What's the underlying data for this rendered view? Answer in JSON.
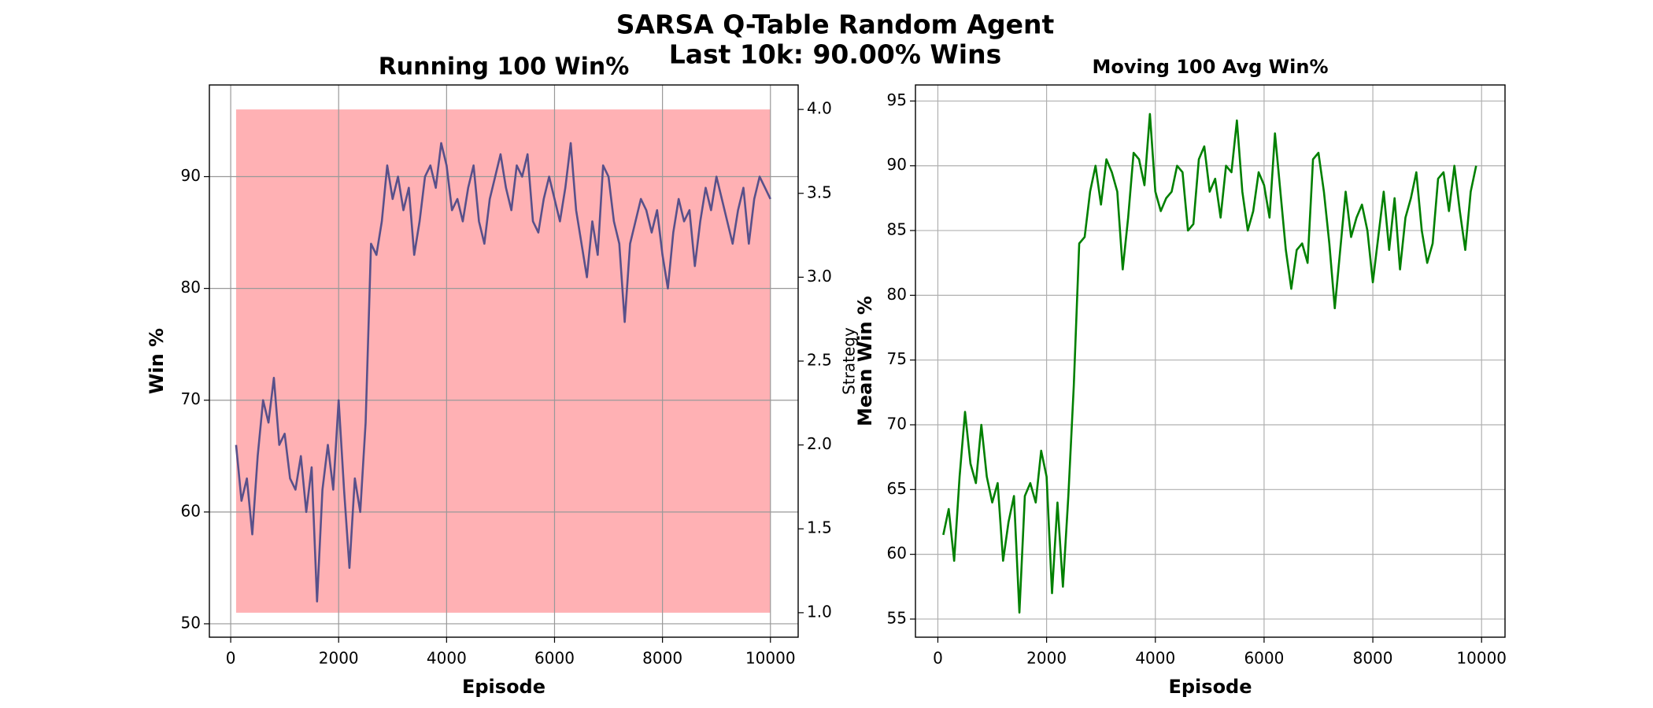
{
  "title": [
    "SARSA Q-Table Random Agent",
    "Last 10k: 90.00% Wins"
  ],
  "chart_data": [
    {
      "type": "line",
      "title": "Running 100 Win%",
      "x_label": "Episode",
      "y_label": "Win %",
      "y2_label": "Strategy",
      "x": [
        100,
        200,
        300,
        400,
        500,
        600,
        700,
        800,
        900,
        1000,
        1100,
        1200,
        1300,
        1400,
        1500,
        1600,
        1700,
        1800,
        1900,
        2000,
        2100,
        2200,
        2300,
        2400,
        2500,
        2600,
        2700,
        2800,
        2900,
        3000,
        3100,
        3200,
        3300,
        3400,
        3500,
        3600,
        3700,
        3800,
        3900,
        4000,
        4100,
        4200,
        4300,
        4400,
        4500,
        4600,
        4700,
        4800,
        4900,
        5000,
        5100,
        5200,
        5300,
        5400,
        5500,
        5600,
        5700,
        5800,
        5900,
        6000,
        6100,
        6200,
        6300,
        6400,
        6500,
        6600,
        6700,
        6800,
        6900,
        7000,
        7100,
        7200,
        7300,
        7400,
        7500,
        7600,
        7700,
        7800,
        7900,
        8000,
        8100,
        8200,
        8300,
        8400,
        8500,
        8600,
        8700,
        8800,
        8900,
        9000,
        9100,
        9200,
        9300,
        9400,
        9500,
        9600,
        9700,
        9800,
        9900,
        10000
      ],
      "series": [
        {
          "color": "#58508a",
          "values": [
            66,
            61,
            63,
            58,
            65,
            70,
            68,
            72,
            66,
            67,
            63,
            62,
            65,
            60,
            64,
            52,
            62,
            66,
            62,
            70,
            62,
            55,
            63,
            60,
            68,
            84,
            83,
            86,
            91,
            88,
            90,
            87,
            89,
            83,
            86,
            90,
            91,
            89,
            93,
            91,
            87,
            88,
            86,
            89,
            91,
            86,
            84,
            88,
            90,
            92,
            89,
            87,
            91,
            90,
            92,
            86,
            85,
            88,
            90,
            88,
            86,
            89,
            93,
            87,
            84,
            81,
            86,
            83,
            91,
            90,
            86,
            84,
            77,
            84,
            86,
            88,
            87,
            85,
            87,
            83,
            80,
            85,
            88,
            86,
            87,
            82,
            86,
            89,
            87,
            90,
            88,
            86,
            84,
            87,
            89,
            84,
            88,
            90,
            89,
            88
          ]
        }
      ],
      "band": {
        "axis": "y2",
        "x": [
          100,
          10000
        ],
        "low": 1,
        "high": 4,
        "color": "#ffb1b4",
        "label_color": "#ff0000"
      },
      "xlim": [
        -395,
        10514
      ],
      "xticks": [
        0,
        2000,
        4000,
        6000,
        8000,
        10000
      ],
      "ylim": [
        48.8,
        98.2
      ],
      "yticks": [
        50,
        60,
        70,
        80,
        90
      ],
      "y2lim": [
        0.854,
        4.146
      ],
      "y2ticks": [
        1.0,
        1.5,
        2.0,
        2.5,
        3.0,
        3.5,
        4.0
      ],
      "grid": true
    },
    {
      "type": "line",
      "title": "Moving 100 Avg Win%",
      "x_label": "Episode",
      "y_label": "Mean Win %",
      "x": [
        100,
        200,
        300,
        400,
        500,
        600,
        700,
        800,
        900,
        1000,
        1100,
        1200,
        1300,
        1400,
        1500,
        1600,
        1700,
        1800,
        1900,
        2000,
        2100,
        2200,
        2300,
        2400,
        2500,
        2600,
        2700,
        2800,
        2900,
        3000,
        3100,
        3200,
        3300,
        3400,
        3500,
        3600,
        3700,
        3800,
        3900,
        4000,
        4100,
        4200,
        4300,
        4400,
        4500,
        4600,
        4700,
        4800,
        4900,
        5000,
        5100,
        5200,
        5300,
        5400,
        5500,
        5600,
        5700,
        5800,
        5900,
        6000,
        6100,
        6200,
        6300,
        6400,
        6500,
        6600,
        6700,
        6800,
        6900,
        7000,
        7100,
        7200,
        7300,
        7400,
        7500,
        7600,
        7700,
        7800,
        7900,
        8000,
        8100,
        8200,
        8300,
        8400,
        8500,
        8600,
        8700,
        8800,
        8900,
        9000,
        9100,
        9200,
        9300,
        9400,
        9500,
        9600,
        9700,
        9800,
        9900
      ],
      "series": [
        {
          "color": "#008000",
          "values": [
            61.5,
            63.5,
            59.5,
            66,
            71,
            67,
            65.5,
            70,
            66,
            64,
            65.5,
            59.5,
            62.5,
            64.5,
            55.5,
            64.5,
            65.5,
            64,
            68,
            66,
            57,
            64,
            57.5,
            64.5,
            73,
            84,
            84.5,
            88,
            90,
            87,
            90.5,
            89.5,
            88,
            82,
            86,
            91,
            90.5,
            88.5,
            94,
            88,
            86.5,
            87.5,
            88,
            90,
            89.5,
            85,
            85.5,
            90.5,
            91.5,
            88,
            89,
            86,
            90,
            89.5,
            93.5,
            88,
            85,
            86.5,
            89.5,
            88.5,
            86,
            92.5,
            88,
            83.5,
            80.5,
            83.5,
            84,
            82.5,
            90.5,
            91,
            88,
            84,
            79,
            83.5,
            88,
            84.5,
            86,
            87,
            85,
            81,
            84.5,
            88,
            83.5,
            87.5,
            82,
            86,
            87.5,
            89.5,
            85,
            82.5,
            84,
            89,
            89.5,
            86.5,
            90,
            86.5,
            83.5,
            88,
            90
          ]
        }
      ],
      "xlim": [
        -412,
        10431
      ],
      "xticks": [
        0,
        2000,
        4000,
        6000,
        8000,
        10000
      ],
      "ylim": [
        53.6,
        96.24
      ],
      "yticks": [
        55,
        60,
        65,
        70,
        75,
        80,
        85,
        90,
        95
      ],
      "grid": true
    }
  ]
}
